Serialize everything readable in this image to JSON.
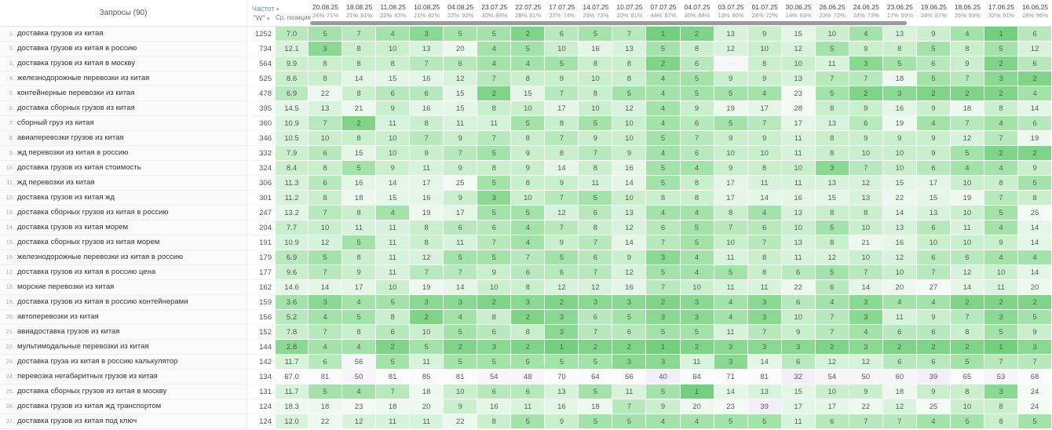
{
  "header": {
    "queries_label": "Запросы (90)",
    "freq_label": "Частот",
    "freq_caret": "▾",
    "w_label": "\"W\"",
    "w_caret": "▾",
    "avg_label": "Ср. позиция"
  },
  "colors": {
    "accent_blue": "#5b9bd5",
    "green_best": "#74cf7c",
    "green_light": "#e4f7e6",
    "lavender": "#f3eef8",
    "scrollbar": "#9a9a9a"
  },
  "columns": [
    {
      "date": "20.08.25",
      "p1": "24%",
      "p2": "71%"
    },
    {
      "date": "18.08.25",
      "p1": "21%",
      "p2": "81%"
    },
    {
      "date": "11.08.25",
      "p1": "22%",
      "p2": "83%"
    },
    {
      "date": "10.08.25",
      "p1": "21%",
      "p2": "82%"
    },
    {
      "date": "04.08.25",
      "p1": "22%",
      "p2": "92%"
    },
    {
      "date": "23.07.25",
      "p1": "30%",
      "p2": "84%"
    },
    {
      "date": "22.07.25",
      "p1": "28%",
      "p2": "81%"
    },
    {
      "date": "17.07.25",
      "p1": "27%",
      "p2": "74%"
    },
    {
      "date": "14.07.25",
      "p1": "23%",
      "p2": "73%"
    },
    {
      "date": "10.07.25",
      "p1": "20%",
      "p2": "81%"
    },
    {
      "date": "07.07.25",
      "p1": "44%",
      "p2": "87%"
    },
    {
      "date": "04.07.25",
      "p1": "30%",
      "p2": "84%"
    },
    {
      "date": "03.07.25",
      "p1": "19%",
      "p2": "80%"
    },
    {
      "date": "01.07.25",
      "p1": "24%",
      "p2": "72%"
    },
    {
      "date": "30.06.25",
      "p1": "14%",
      "p2": "69%"
    },
    {
      "date": "26.06.25",
      "p1": "23%",
      "p2": "72%"
    },
    {
      "date": "24.06.25",
      "p1": "24%",
      "p2": "73%"
    },
    {
      "date": "23.06.25",
      "p1": "17%",
      "p2": "59%"
    },
    {
      "date": "19.06.25",
      "p1": "24%",
      "p2": "87%"
    },
    {
      "date": "18.06.25",
      "p1": "26%",
      "p2": "89%"
    },
    {
      "date": "17.06.25",
      "p1": "32%",
      "p2": "91%"
    },
    {
      "date": "16.06.25",
      "p1": "28%",
      "p2": "96%"
    }
  ],
  "rows": [
    {
      "n": "1.",
      "query": "доставка грузов из китая",
      "w": "1252",
      "avg": "7.0",
      "cells": [
        "5",
        "7",
        "4",
        "3",
        "5",
        "5",
        "2",
        "6",
        "5",
        "7",
        "1",
        "2",
        "13",
        "9",
        "15",
        "10",
        "4",
        "13",
        "9",
        "4",
        "1",
        "6"
      ]
    },
    {
      "n": "2.",
      "query": "доставка грузов из китая в россию",
      "w": "734",
      "avg": "12.1",
      "cells": [
        "3",
        "8",
        "10",
        "13",
        "20",
        "4",
        "5",
        "10",
        "16",
        "13",
        "5",
        "8",
        "12",
        "10",
        "12",
        "5",
        "9",
        "8",
        "5",
        "8",
        "5",
        "12"
      ]
    },
    {
      "n": "3.",
      "query": "доставка грузов из китая в москву",
      "w": "564",
      "avg": "9.9",
      "cells": [
        "8",
        "8",
        "8",
        "7",
        "6",
        "4",
        "4",
        "5",
        "8",
        "8",
        "2",
        "6",
        "-",
        "8",
        "10",
        "11",
        "3",
        "5",
        "6",
        "9",
        "2",
        "6"
      ]
    },
    {
      "n": "4.",
      "query": "железнодорожные перевозки из китая",
      "w": "525",
      "avg": "8.6",
      "cells": [
        "8",
        "14",
        "15",
        "16",
        "12",
        "7",
        "8",
        "9",
        "10",
        "8",
        "4",
        "5",
        "9",
        "9",
        "13",
        "7",
        "7",
        "18",
        "5",
        "7",
        "3",
        "2"
      ]
    },
    {
      "n": "5.",
      "query": "контейнерные перевозки из китая",
      "w": "478",
      "avg": "6.9",
      "cells": [
        "22",
        "8",
        "6",
        "6",
        "15",
        "2",
        "15",
        "7",
        "8",
        "5",
        "4",
        "5",
        "5",
        "4",
        "23",
        "5",
        "2",
        "3",
        "2",
        "2",
        "2",
        "4"
      ]
    },
    {
      "n": "6.",
      "query": "доставка сборных грузов из китая",
      "w": "395",
      "avg": "14.5",
      "cells": [
        "13",
        "21",
        "9",
        "16",
        "15",
        "8",
        "10",
        "17",
        "10",
        "12",
        "4",
        "9",
        "19",
        "17",
        "28",
        "8",
        "9",
        "16",
        "9",
        "18",
        "8",
        "14"
      ]
    },
    {
      "n": "7.",
      "query": "сборный груз из китая",
      "w": "360",
      "avg": "10.9",
      "cells": [
        "7",
        "2",
        "11",
        "8",
        "11",
        "11",
        "5",
        "8",
        "5",
        "10",
        "4",
        "6",
        "5",
        "7",
        "17",
        "13",
        "6",
        "19",
        "4",
        "7",
        "4",
        "6"
      ]
    },
    {
      "n": "8.",
      "query": "авиаперевозки грузов из китая",
      "w": "346",
      "avg": "10.5",
      "cells": [
        "10",
        "8",
        "10",
        "7",
        "9",
        "7",
        "8",
        "7",
        "9",
        "10",
        "5",
        "7",
        "9",
        "9",
        "11",
        "8",
        "9",
        "9",
        "9",
        "12",
        "7",
        "19"
      ]
    },
    {
      "n": "9.",
      "query": "жд перевозки из китая в россию",
      "w": "332",
      "avg": "7.9",
      "cells": [
        "6",
        "15",
        "10",
        "9",
        "7",
        "5",
        "9",
        "8",
        "7",
        "9",
        "4",
        "6",
        "10",
        "10",
        "11",
        "8",
        "10",
        "10",
        "9",
        "5",
        "2",
        "2"
      ]
    },
    {
      "n": "10.",
      "query": "доставка грузов из китая стоимость",
      "w": "324",
      "avg": "8.4",
      "cells": [
        "8",
        "5",
        "9",
        "11",
        "9",
        "8",
        "9",
        "14",
        "8",
        "16",
        "5",
        "4",
        "9",
        "8",
        "10",
        "3",
        "7",
        "10",
        "6",
        "4",
        "4",
        "9"
      ]
    },
    {
      "n": "11.",
      "query": "жд перевозки из китая",
      "w": "306",
      "avg": "11.3",
      "cells": [
        "6",
        "16",
        "14",
        "17",
        "25",
        "5",
        "8",
        "9",
        "11",
        "14",
        "5",
        "8",
        "17",
        "11",
        "11",
        "13",
        "12",
        "15",
        "17",
        "10",
        "8",
        "5"
      ]
    },
    {
      "n": "12.",
      "query": "доставка грузов из китая жд",
      "w": "301",
      "avg": "11.2",
      "cells": [
        "8",
        "18",
        "15",
        "16",
        "9",
        "3",
        "10",
        "7",
        "5",
        "10",
        "8",
        "8",
        "17",
        "14",
        "16",
        "15",
        "13",
        "22",
        "15",
        "19",
        "7",
        "8"
      ]
    },
    {
      "n": "13.",
      "query": "доставка сборных грузов из китая в россию",
      "w": "247",
      "avg": "13.2",
      "cells": [
        "7",
        "8",
        "4",
        "19",
        "17",
        "5",
        "5",
        "12",
        "6",
        "13",
        "4",
        "4",
        "8",
        "4",
        "13",
        "8",
        "8",
        "14",
        "13",
        "10",
        "5",
        "25"
      ]
    },
    {
      "n": "14.",
      "query": "доставка грузов из китая морем",
      "w": "204",
      "avg": "7.7",
      "cells": [
        "10",
        "11",
        "11",
        "8",
        "6",
        "6",
        "4",
        "7",
        "8",
        "12",
        "6",
        "5",
        "7",
        "6",
        "10",
        "5",
        "10",
        "13",
        "6",
        "11",
        "4",
        "14"
      ]
    },
    {
      "n": "15.",
      "query": "доставка сборных грузов из китая морем",
      "w": "191",
      "avg": "10.9",
      "cells": [
        "12",
        "5",
        "11",
        "8",
        "11",
        "7",
        "4",
        "9",
        "7",
        "14",
        "7",
        "5",
        "10",
        "7",
        "13",
        "8",
        "21",
        "16",
        "10",
        "10",
        "9",
        "14"
      ]
    },
    {
      "n": "16.",
      "query": "железнодорожные перевозки из китая в россию",
      "w": "179",
      "avg": "6.9",
      "cells": [
        "5",
        "8",
        "11",
        "12",
        "5",
        "5",
        "7",
        "5",
        "6",
        "9",
        "3",
        "4",
        "11",
        "8",
        "11",
        "12",
        "10",
        "12",
        "6",
        "6",
        "4",
        "4"
      ]
    },
    {
      "n": "17.",
      "query": "доставка грузов из китая в россию цена",
      "w": "177",
      "avg": "9.6",
      "cells": [
        "7",
        "9",
        "11",
        "7",
        "7",
        "9",
        "6",
        "6",
        "7",
        "12",
        "5",
        "4",
        "5",
        "8",
        "6",
        "5",
        "7",
        "10",
        "7",
        "12",
        "10",
        "14"
      ]
    },
    {
      "n": "18.",
      "query": "морские перевозки из китая",
      "w": "162",
      "avg": "14.6",
      "cells": [
        "14",
        "17",
        "10",
        "19",
        "14",
        "10",
        "8",
        "12",
        "12",
        "16",
        "7",
        "10",
        "11",
        "11",
        "22",
        "6",
        "14",
        "20",
        "27",
        "14",
        "11",
        "20"
      ]
    },
    {
      "n": "19.",
      "query": "доставка грузов из китая в россию контейнерами",
      "w": "159",
      "avg": "3.6",
      "cells": [
        "3",
        "4",
        "5",
        "3",
        "3",
        "2",
        "3",
        "2",
        "3",
        "3",
        "2",
        "3",
        "4",
        "3",
        "6",
        "4",
        "3",
        "4",
        "4",
        "2",
        "2",
        "2"
      ]
    },
    {
      "n": "20.",
      "query": "автоперевозки из китая",
      "w": "156",
      "avg": "5.2",
      "cells": [
        "4",
        "5",
        "8",
        "2",
        "4",
        "8",
        "2",
        "3",
        "6",
        "5",
        "3",
        "3",
        "4",
        "3",
        "10",
        "7",
        "3",
        "11",
        "9",
        "7",
        "3",
        "5"
      ]
    },
    {
      "n": "21.",
      "query": "авиадоставка грузов из китая",
      "w": "152",
      "avg": "7.8",
      "cells": [
        "7",
        "8",
        "6",
        "10",
        "5",
        "6",
        "8",
        "3",
        "7",
        "6",
        "5",
        "5",
        "11",
        "7",
        "9",
        "7",
        "4",
        "6",
        "6",
        "8",
        "5",
        "9"
      ]
    },
    {
      "n": "22.",
      "query": "мультимодальные перевозки из китая",
      "w": "144",
      "avg": "2.8",
      "cells": [
        "4",
        "4",
        "2",
        "5",
        "2",
        "3",
        "2",
        "1",
        "2",
        "2",
        "1",
        "2",
        "3",
        "3",
        "3",
        "2",
        "3",
        "2",
        "2",
        "2",
        "1",
        "3"
      ]
    },
    {
      "n": "23.",
      "query": "доставка груза из китая в россию калькулятор",
      "w": "142",
      "avg": "11.7",
      "cells": [
        "6",
        "56",
        "5",
        "11",
        "5",
        "5",
        "5",
        "5",
        "5",
        "3",
        "3",
        "11",
        "3",
        "14",
        "6",
        "12",
        "12",
        "6",
        "6",
        "5",
        "7",
        "7"
      ]
    },
    {
      "n": "24.",
      "query": "перевозка негабаритных грузов из китая",
      "w": "134",
      "avg": "67.0",
      "cells": [
        "81",
        "50",
        "81",
        "85",
        "81",
        "54",
        "48",
        "70",
        "64",
        "66",
        "40",
        "64",
        "71",
        "81",
        "32",
        "54",
        "50",
        "60",
        "39",
        "65",
        "53",
        "68"
      ]
    },
    {
      "n": "25.",
      "query": "доставка сборных грузов из китая в москву",
      "w": "131",
      "avg": "11.7",
      "cells": [
        "5",
        "4",
        "7",
        "18",
        "10",
        "6",
        "6",
        "13",
        "5",
        "11",
        "5",
        "1",
        "14",
        "13",
        "15",
        "10",
        "9",
        "18",
        "9",
        "8",
        "3",
        "24"
      ]
    },
    {
      "n": "26.",
      "query": "доставка грузов из китая жд транспортом",
      "w": "124",
      "avg": "18.3",
      "cells": [
        "18",
        "23",
        "18",
        "20",
        "9",
        "16",
        "11",
        "16",
        "18",
        "7",
        "9",
        "20",
        "23",
        "39",
        "17",
        "17",
        "22",
        "12",
        "25",
        "10",
        "8",
        "24"
      ]
    },
    {
      "n": "27.",
      "query": "доставка грузов из китая под ключ",
      "w": "124",
      "avg": "12.0",
      "cells": [
        "22",
        "12",
        "11",
        "11",
        "22",
        "8",
        "5",
        "9",
        "5",
        "5",
        "4",
        "4",
        "5",
        "5",
        "11",
        "6",
        "7",
        "7",
        "4",
        "5",
        "8",
        "5"
      ]
    }
  ]
}
